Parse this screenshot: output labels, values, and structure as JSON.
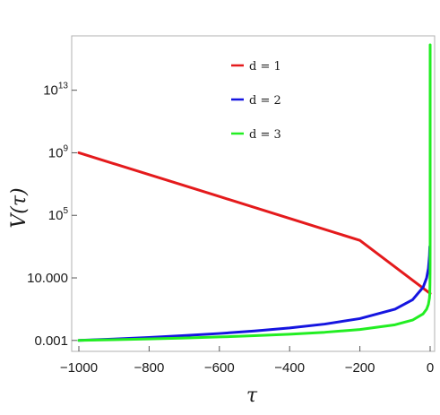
{
  "chart_data": {
    "type": "line",
    "title": "",
    "xlabel": "τ",
    "ylabel": "V(τ)",
    "xlim": [
      -1000,
      0
    ],
    "ylim": [
      0.0002,
      3e+16
    ],
    "y_scale": "log",
    "grid": false,
    "legend_position": "top-center",
    "x_ticks": [
      -1000,
      -800,
      -600,
      -400,
      -200,
      0
    ],
    "x_tick_labels": [
      "−1000",
      "−800",
      "−600",
      "−400",
      "−200",
      "0"
    ],
    "y_ticks": [
      {
        "value": 0.001,
        "base": "0.001",
        "exp": ""
      },
      {
        "value": 10,
        "base": "10.000",
        "exp": ""
      },
      {
        "value": 100000,
        "base": "10",
        "exp": "5"
      },
      {
        "value": 1000000000,
        "base": "10",
        "exp": "9"
      },
      {
        "value": 10000000000000,
        "base": "10",
        "exp": "13"
      }
    ],
    "series": [
      {
        "name": "d = 1",
        "color": "#e41a1c",
        "x": [
          -1000,
          -800,
          -600,
          -400,
          -200,
          0
        ],
        "y": [
          1000000000.0,
          40000000.0,
          1600000.0,
          63000.0,
          2500.0,
          1.0
        ]
      },
      {
        "name": "d = 2",
        "color": "#1515e0",
        "x": [
          -1000,
          -900,
          -800,
          -700,
          -600,
          -500,
          -400,
          -300,
          -200,
          -100,
          -50,
          -20,
          -10,
          -5,
          -2,
          -1
        ],
        "y": [
          0.001,
          0.00123,
          0.00156,
          0.00204,
          0.00278,
          0.004,
          0.00625,
          0.0111,
          0.025,
          0.1,
          0.4,
          2.5,
          10,
          40,
          250,
          1000
        ]
      },
      {
        "name": "d = 3",
        "color": "#22ee22",
        "x": [
          -1000,
          -900,
          -800,
          -700,
          -600,
          -500,
          -400,
          -300,
          -200,
          -100,
          -50,
          -20,
          -10,
          -5,
          -2,
          -1,
          -0.5,
          -0.2,
          -0.1,
          -0.05,
          -0.01,
          -0.005
        ],
        "y": [
          0.001,
          0.00111,
          0.00125,
          0.00143,
          0.00167,
          0.002,
          0.0025,
          0.00333,
          0.005,
          0.01,
          0.02,
          0.05,
          0.1,
          0.2,
          0.5,
          1,
          4,
          25,
          100,
          400,
          10000.0,
          8000000000000000.0
        ]
      }
    ]
  }
}
